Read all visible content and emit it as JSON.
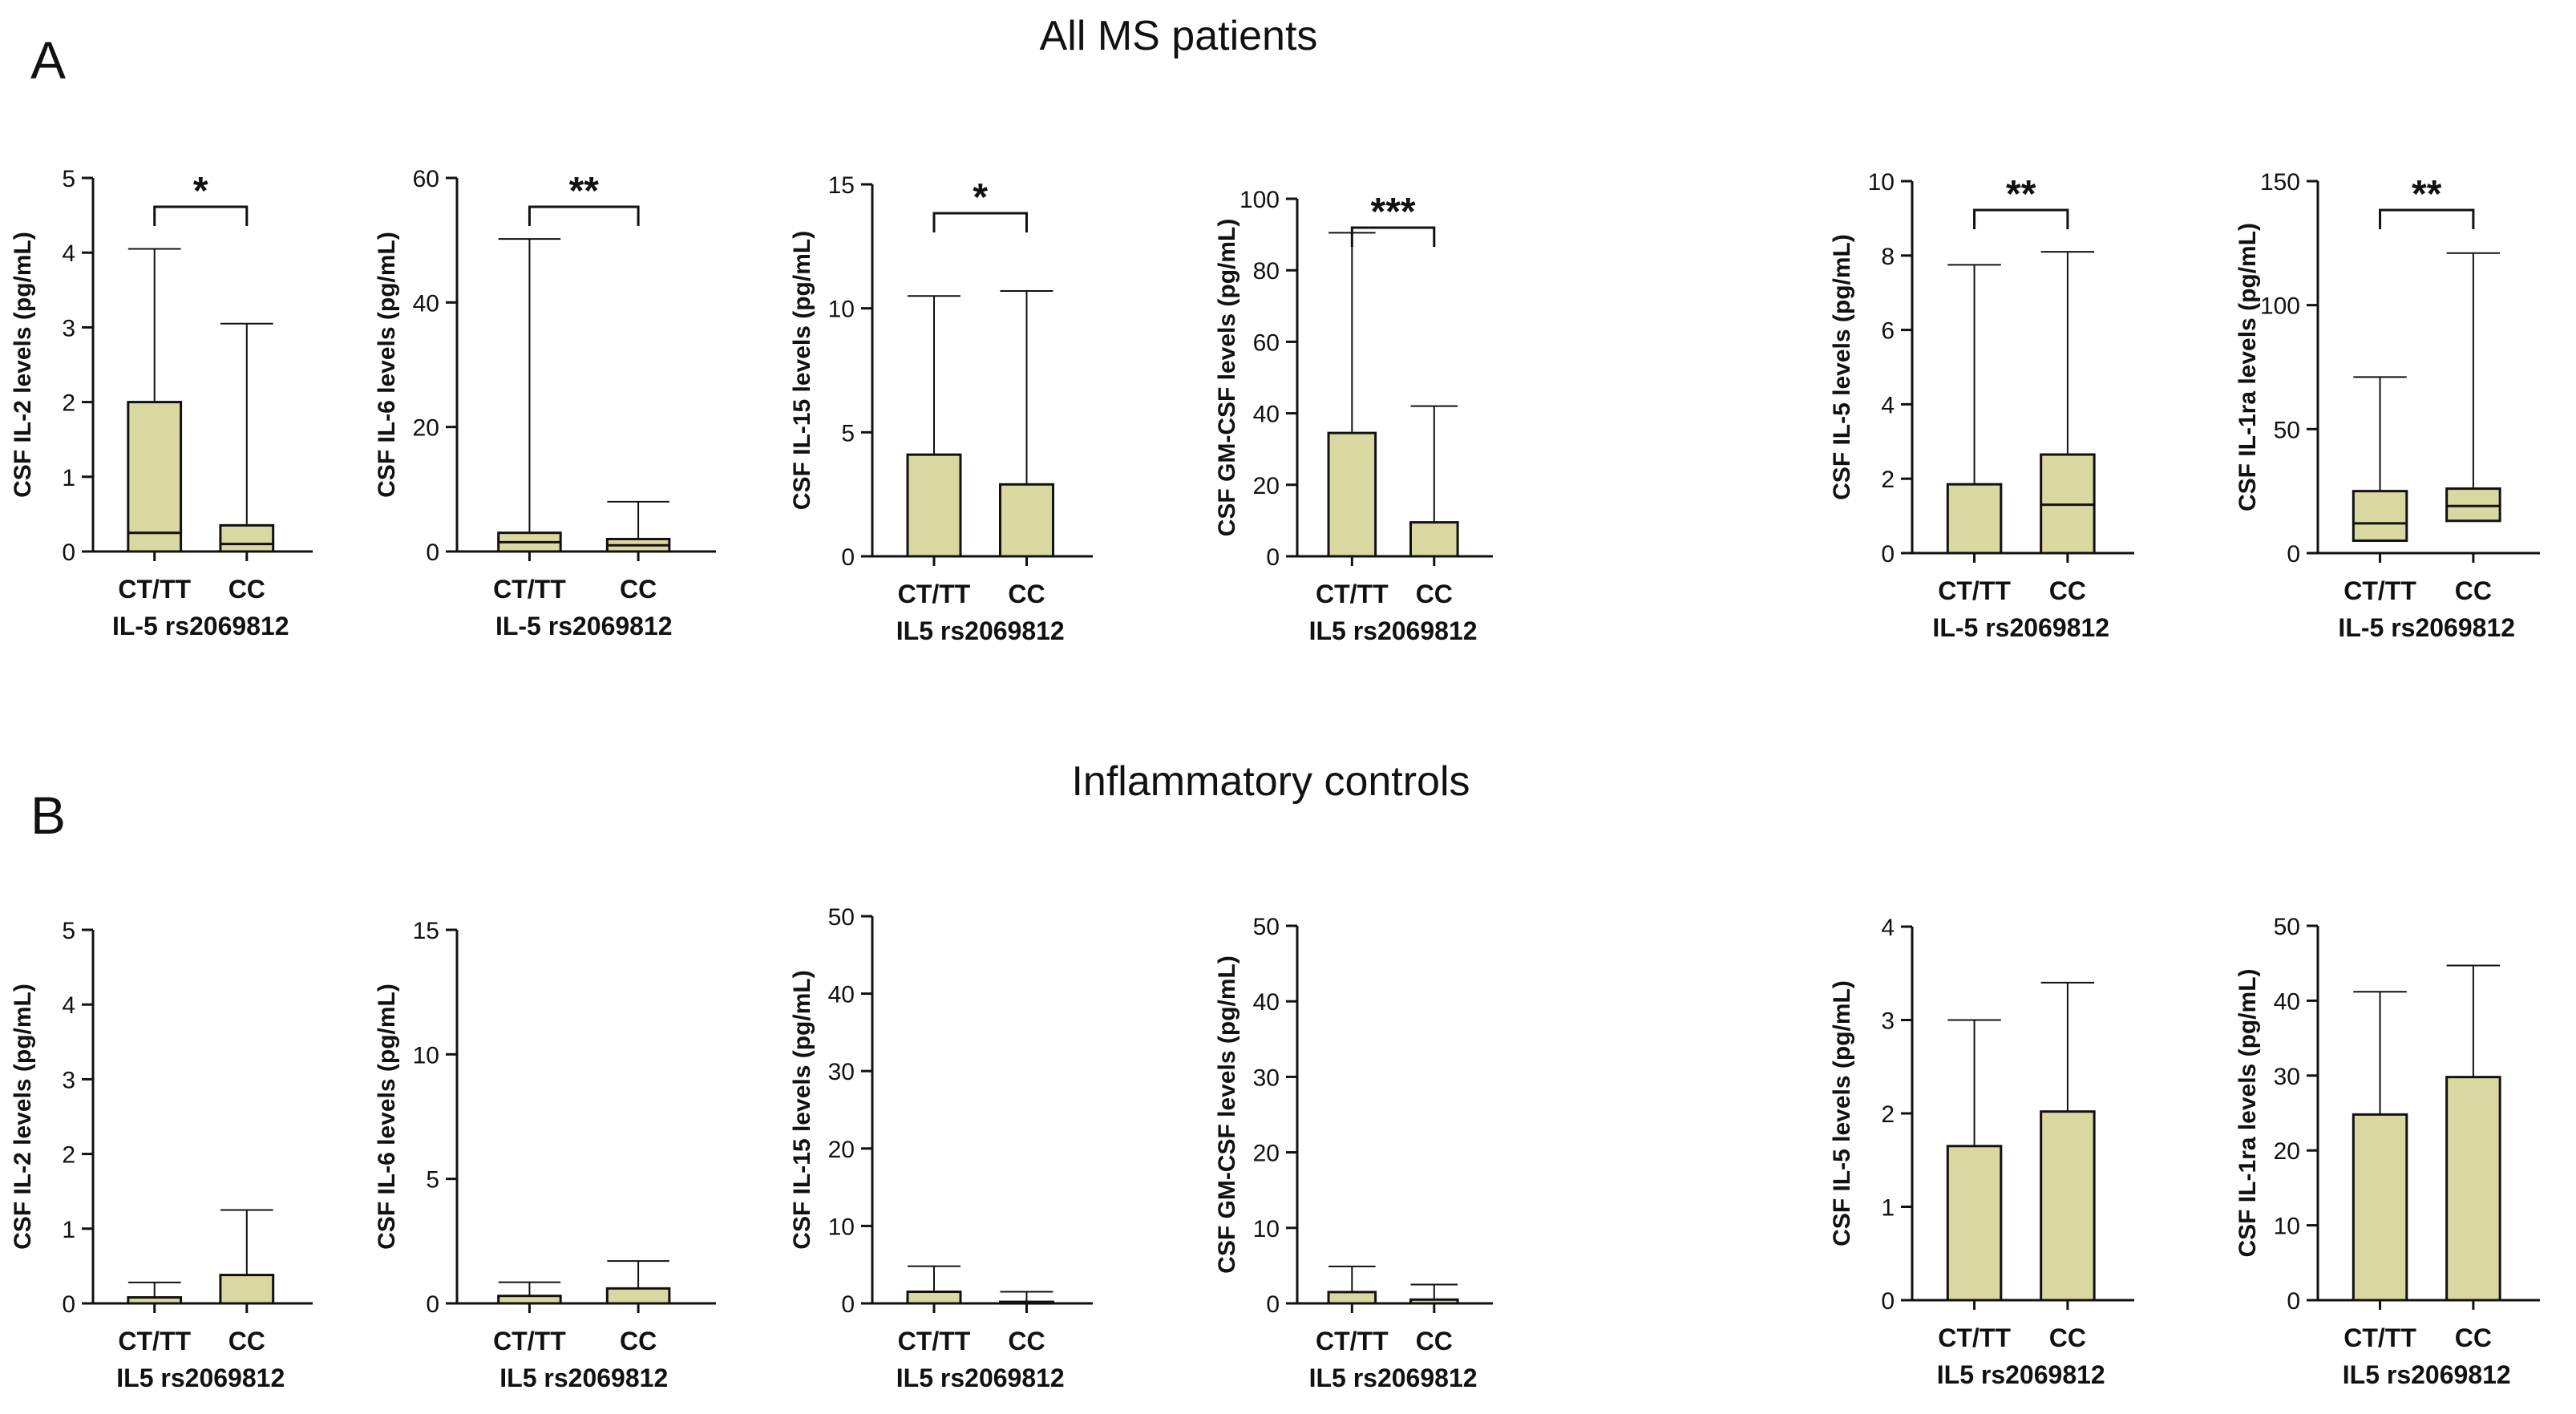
{
  "figure": {
    "panel_a": {
      "letter": "A",
      "title": "All MS patients"
    },
    "panel_b": {
      "letter": "B",
      "title": "Inflammatory controls"
    },
    "colors": {
      "box_fill": "#d8d8a0",
      "stroke": "#111111"
    }
  },
  "chart_data": [
    {
      "type": "box",
      "panel": "A",
      "ylabel": "CSF IL-2 levels (pg/mL)",
      "xlabel": "IL-5 rs2069812",
      "yticks": [
        0,
        1,
        2,
        3,
        4,
        5
      ],
      "ylim": [
        0,
        5
      ],
      "categories": [
        "CT/TT",
        "CC"
      ],
      "groups": [
        {
          "min": 0,
          "q1": 0,
          "median": 0.25,
          "q3": 2.0,
          "max": 4.05
        },
        {
          "min": 0,
          "q1": 0,
          "median": 0.1,
          "q3": 0.35,
          "max": 3.05
        }
      ],
      "significance": "*"
    },
    {
      "type": "box",
      "panel": "A",
      "ylabel": "CSF IL-6 levels (pg/mL)",
      "xlabel": "IL-5 rs2069812",
      "yticks": [
        0,
        20,
        40,
        60
      ],
      "ylim": [
        0,
        60
      ],
      "categories": [
        "CT/TT",
        "CC"
      ],
      "groups": [
        {
          "min": 0,
          "q1": 0,
          "median": 1.5,
          "q3": 3.0,
          "max": 50.2
        },
        {
          "min": 0,
          "q1": 0,
          "median": 1.0,
          "q3": 2.0,
          "max": 8.0
        }
      ],
      "significance": "**"
    },
    {
      "type": "box",
      "panel": "A",
      "ylabel": "CSF IL-15 levels (pg/mL)",
      "xlabel": "IL5 rs2069812",
      "yticks": [
        0,
        5,
        10,
        15
      ],
      "ylim": [
        0,
        15
      ],
      "categories": [
        "CT/TT",
        "CC"
      ],
      "groups": [
        {
          "min": 0,
          "q1": 0,
          "median": 0,
          "q3": 4.1,
          "max": 10.5
        },
        {
          "min": 0,
          "q1": 0,
          "median": 0,
          "q3": 2.9,
          "max": 10.7
        }
      ],
      "significance": "*"
    },
    {
      "type": "box",
      "panel": "A",
      "ylabel": "CSF GM-CSF levels (pg/mL)",
      "xlabel": "IL5 rs2069812",
      "yticks": [
        0,
        20,
        40,
        60,
        80,
        100
      ],
      "ylim": [
        0,
        100
      ],
      "categories": [
        "CT/TT",
        "CC"
      ],
      "groups": [
        {
          "min": 0,
          "q1": 0,
          "median": 0,
          "q3": 34.5,
          "max": 90.5
        },
        {
          "min": 0,
          "q1": 0,
          "median": 0,
          "q3": 9.5,
          "max": 42.0
        }
      ],
      "significance": "***"
    },
    {
      "type": "box",
      "panel": "A",
      "ylabel": "CSF IL-5 levels (pg/mL)",
      "xlabel": "IL-5 rs2069812",
      "yticks": [
        0,
        2,
        4,
        6,
        8,
        10
      ],
      "ylim": [
        0,
        10
      ],
      "categories": [
        "CT/TT",
        "CC"
      ],
      "groups": [
        {
          "min": 0,
          "q1": 0,
          "median": 0,
          "q3": 1.85,
          "max": 7.75
        },
        {
          "min": 0,
          "q1": 0,
          "median": 1.3,
          "q3": 2.65,
          "max": 8.1
        }
      ],
      "significance": "**"
    },
    {
      "type": "box",
      "panel": "A",
      "ylabel": "CSF IL-1ra levels (pg/mL)",
      "xlabel": "IL-5 rs2069812",
      "yticks": [
        0,
        50,
        100,
        150
      ],
      "ylim": [
        0,
        150
      ],
      "categories": [
        "CT/TT",
        "CC"
      ],
      "groups": [
        {
          "min": 0,
          "q1": 5,
          "median": 12,
          "q3": 25,
          "max": 71
        },
        {
          "min": 0,
          "q1": 13,
          "median": 19,
          "q3": 26,
          "max": 121
        }
      ],
      "significance": "**"
    },
    {
      "type": "box",
      "panel": "B",
      "ylabel": "CSF IL-2 levels (pg/mL)",
      "xlabel": "IL5 rs2069812",
      "yticks": [
        0,
        1,
        2,
        3,
        4,
        5
      ],
      "ylim": [
        0,
        5
      ],
      "categories": [
        "CT/TT",
        "CC"
      ],
      "groups": [
        {
          "min": 0,
          "q1": 0,
          "median": 0,
          "q3": 0.08,
          "max": 0.28
        },
        {
          "min": 0,
          "q1": 0,
          "median": 0,
          "q3": 0.38,
          "max": 1.25
        }
      ]
    },
    {
      "type": "box",
      "panel": "B",
      "ylabel": "CSF IL-6 levels (pg/mL)",
      "xlabel": "IL5 rs2069812",
      "yticks": [
        0,
        5,
        10,
        15
      ],
      "ylim": [
        0,
        15
      ],
      "categories": [
        "CT/TT",
        "CC"
      ],
      "groups": [
        {
          "min": 0,
          "q1": 0,
          "median": 0,
          "q3": 0.3,
          "max": 0.85
        },
        {
          "min": 0,
          "q1": 0,
          "median": 0,
          "q3": 0.6,
          "max": 1.7
        }
      ]
    },
    {
      "type": "box",
      "panel": "B",
      "ylabel": "CSF IL-15 levels (pg/mL)",
      "xlabel": "IL5 rs2069812",
      "yticks": [
        0,
        10,
        20,
        30,
        40,
        50
      ],
      "ylim": [
        0,
        50
      ],
      "categories": [
        "CT/TT",
        "CC"
      ],
      "groups": [
        {
          "min": 0,
          "q1": 0,
          "median": 0,
          "q3": 1.5,
          "max": 4.8
        },
        {
          "min": 0,
          "q1": 0,
          "median": 0,
          "q3": 0.2,
          "max": 1.5
        }
      ]
    },
    {
      "type": "box",
      "panel": "B",
      "ylabel": "CSF GM-CSF levels (pg/mL)",
      "xlabel": "IL5 rs2069812",
      "yticks": [
        0,
        10,
        20,
        30,
        40,
        50
      ],
      "ylim": [
        0,
        50
      ],
      "categories": [
        "CT/TT",
        "CC"
      ],
      "groups": [
        {
          "min": 0,
          "q1": 0,
          "median": 0,
          "q3": 1.5,
          "max": 4.9
        },
        {
          "min": 0,
          "q1": 0,
          "median": 0,
          "q3": 0.5,
          "max": 2.5
        }
      ]
    },
    {
      "type": "box",
      "panel": "B",
      "ylabel": "CSF IL-5 levels (pg/mL)",
      "xlabel": "IL5 rs2069812",
      "yticks": [
        0,
        1,
        2,
        3,
        4
      ],
      "ylim": [
        0,
        4
      ],
      "categories": [
        "CT/TT",
        "CC"
      ],
      "groups": [
        {
          "min": 0,
          "q1": 0,
          "median": 0,
          "q3": 1.65,
          "max": 3.0
        },
        {
          "min": 0,
          "q1": 0,
          "median": 0,
          "q3": 2.02,
          "max": 3.4
        }
      ]
    },
    {
      "type": "box",
      "panel": "B",
      "ylabel": "CSF IL-1ra levels (pg/mL)",
      "xlabel": "IL5 rs2069812",
      "yticks": [
        0,
        10,
        20,
        30,
        40,
        50
      ],
      "ylim": [
        0,
        50
      ],
      "categories": [
        "CT/TT",
        "CC"
      ],
      "groups": [
        {
          "min": 0,
          "q1": 0,
          "median": 0,
          "q3": 24.8,
          "max": 41.2
        },
        {
          "min": 0,
          "q1": 0,
          "median": 0,
          "q3": 29.8,
          "max": 44.7
        }
      ]
    }
  ]
}
